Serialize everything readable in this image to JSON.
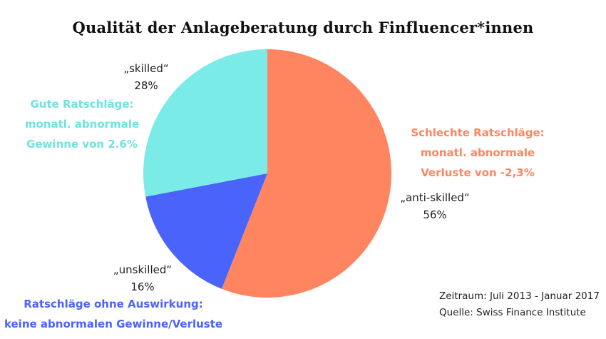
{
  "chart_data": {
    "type": "pie",
    "title": "Qualität der Anlageberatung durch Finfluencer*innen",
    "slices": [
      {
        "label": "„anti-skilled“",
        "value": 56,
        "value_label": "56%",
        "color": "#ff8560"
      },
      {
        "label": "„unskilled“",
        "value": 16,
        "value_label": "16%",
        "color": "#4a63fb"
      },
      {
        "label": "„skilled“",
        "value": 28,
        "value_label": "28%",
        "color": "#7aebe6"
      }
    ],
    "groups": [
      {
        "lines": [
          "Schlechte Ratschläge:",
          "monatl. abnormale",
          "Verluste von -2,3%"
        ],
        "color": "#ff8560"
      },
      {
        "lines": [
          "Ratschläge ohne Auswirkung:",
          "keine abnormalen Gewinne/Verluste"
        ],
        "color": "#4a63fb"
      },
      {
        "lines": [
          "Gute Ratschläge:",
          "monatl. abnormale",
          "Gewinne von 2.6%"
        ],
        "color": "#6ee3de"
      }
    ],
    "footnote": {
      "period": "Zeitraum: Juli 2013 - Januar 2017",
      "source": "Quelle: Swiss Finance Institute"
    }
  }
}
